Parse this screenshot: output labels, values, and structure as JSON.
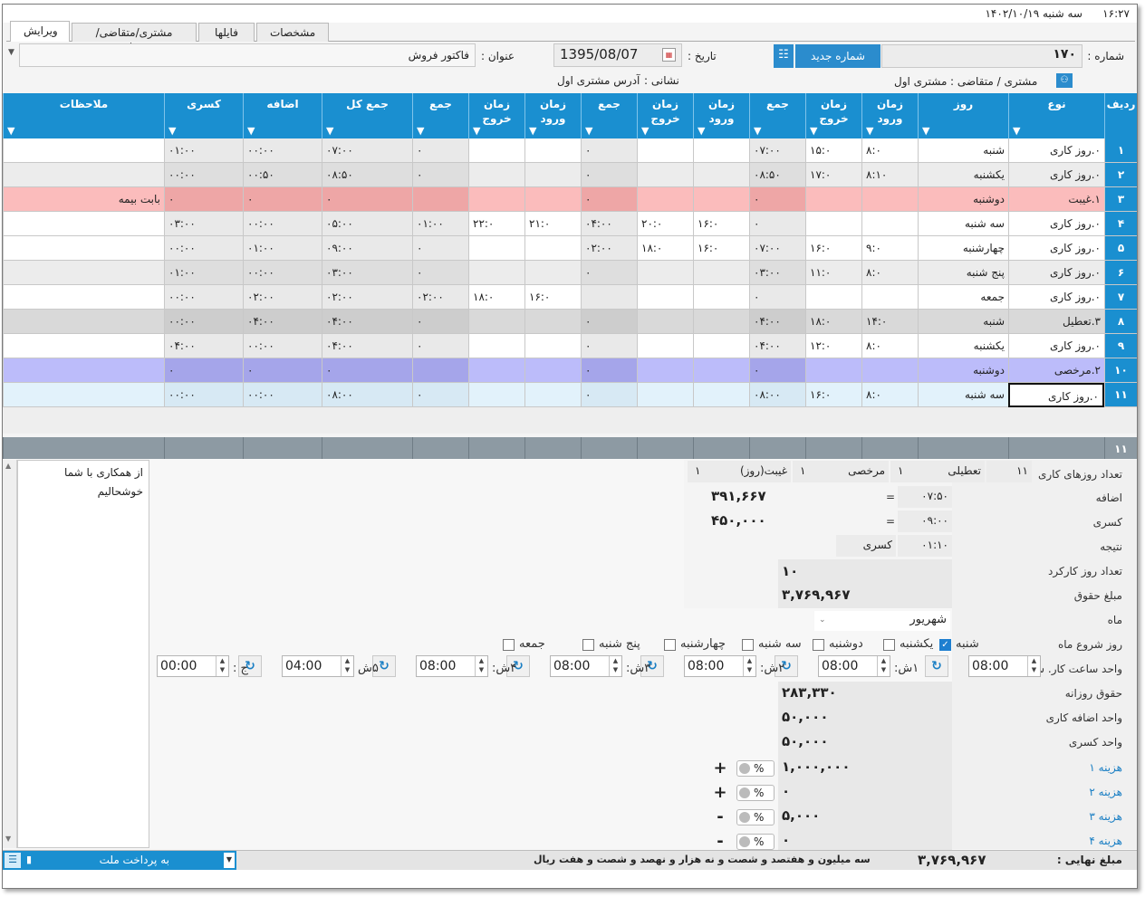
{
  "titlebar": {
    "time": "۱۶:۲۷",
    "date": "سه شنبه  ۱۴۰۲/۱۰/۱۹"
  },
  "tabs": [
    {
      "label": "ویرایش",
      "active": true
    },
    {
      "label": "مشتری/متقاضی/پروژه",
      "active": false
    },
    {
      "label": "فایلها",
      "active": false
    },
    {
      "label": "مشخصات",
      "active": false
    }
  ],
  "header": {
    "number_label": "شماره :",
    "number_value": "۱۷۰",
    "new_number_button": "شماره جدید",
    "date_label": "تاریخ :",
    "date_value": "1395/08/07",
    "title_label": "عنوان :",
    "title_value": "فاکتور فروش",
    "customer_label": "مشتری / متقاضی :",
    "customer_value": "مشتری اول",
    "address_label": "نشانی :",
    "address_value": "آدرس مشتری اول"
  },
  "grid": {
    "headers": {
      "row": "ردیف",
      "type": "نوع",
      "day": "روز",
      "in1": "زمان ورود",
      "out1": "زمان خروج",
      "sum1": "جمع",
      "in2": "زمان ورود",
      "out2": "زمان خروج",
      "sum2": "جمع",
      "in3": "زمان ورود",
      "out3": "زمان خروج",
      "sum3": "جمع",
      "total": "جمع کل",
      "extra": "اضافه",
      "deduct": "کسری",
      "notes": "ملاحظات"
    },
    "rows": [
      {
        "num": "۱",
        "type": "۰.روز کاری",
        "day": "شنبه",
        "in1": "۸:۰",
        "out1": "۱۵:۰",
        "sum1": "۰۷:۰۰",
        "in2": "",
        "out2": "",
        "sum2": "۰",
        "in3": "",
        "out3": "",
        "sum3": "۰",
        "total": "۰۷:۰۰",
        "extra": "۰۰:۰۰",
        "deduct": "۰۱:۰۰",
        "notes": "",
        "style": "white"
      },
      {
        "num": "۲",
        "type": "۰.روز کاری",
        "day": "یکشنبه",
        "in1": "۸:۱۰",
        "out1": "۱۷:۰",
        "sum1": "۰۸:۵۰",
        "in2": "",
        "out2": "",
        "sum2": "۰",
        "in3": "",
        "out3": "",
        "sum3": "۰",
        "total": "۰۸:۵۰",
        "extra": "۰۰:۵۰",
        "deduct": "۰۰:۰۰",
        "notes": "",
        "style": "gray"
      },
      {
        "num": "۳",
        "type": "۱.غیبت",
        "day": "دوشنبه",
        "in1": "",
        "out1": "",
        "sum1": "۰",
        "in2": "",
        "out2": "",
        "sum2": "۰",
        "in3": "",
        "out3": "",
        "sum3": "",
        "total": "۰",
        "extra": "۰",
        "deduct": "۰",
        "notes": "بابت بیمه",
        "style": "red"
      },
      {
        "num": "۴",
        "type": "۰.روز کاری",
        "day": "سه شنبه",
        "in1": "",
        "out1": "",
        "sum1": "۰",
        "in2": "۱۶:۰",
        "out2": "۲۰:۰",
        "sum2": "۰۴:۰۰",
        "in3": "۲۱:۰",
        "out3": "۲۲:۰",
        "sum3": "۰۱:۰۰",
        "total": "۰۵:۰۰",
        "extra": "۰۰:۰۰",
        "deduct": "۰۳:۰۰",
        "notes": "",
        "style": "white"
      },
      {
        "num": "۵",
        "type": "۰.روز کاری",
        "day": "چهارشنبه",
        "in1": "۹:۰",
        "out1": "۱۶:۰",
        "sum1": "۰۷:۰۰",
        "in2": "۱۶:۰",
        "out2": "۱۸:۰",
        "sum2": "۰۲:۰۰",
        "in3": "",
        "out3": "",
        "sum3": "۰",
        "total": "۰۹:۰۰",
        "extra": "۰۱:۰۰",
        "deduct": "۰۰:۰۰",
        "notes": "",
        "style": "white"
      },
      {
        "num": "۶",
        "type": "۰.روز کاری",
        "day": "پنج شنبه",
        "in1": "۸:۰",
        "out1": "۱۱:۰",
        "sum1": "۰۳:۰۰",
        "in2": "",
        "out2": "",
        "sum2": "۰",
        "in3": "",
        "out3": "",
        "sum3": "۰",
        "total": "۰۳:۰۰",
        "extra": "۰۰:۰۰",
        "deduct": "۰۱:۰۰",
        "notes": "",
        "style": "gray"
      },
      {
        "num": "۷",
        "type": "۰.روز کاری",
        "day": "جمعه",
        "in1": "",
        "out1": "",
        "sum1": "۰",
        "in2": "",
        "out2": "",
        "sum2": "",
        "in3": "۱۶:۰",
        "out3": "۱۸:۰",
        "sum3": "۰۲:۰۰",
        "total": "۰۲:۰۰",
        "extra": "۰۲:۰۰",
        "deduct": "۰۰:۰۰",
        "notes": "",
        "style": "white"
      },
      {
        "num": "۸",
        "type": "۳.تعطیل",
        "day": "شنبه",
        "in1": "۱۴:۰",
        "out1": "۱۸:۰",
        "sum1": "۰۴:۰۰",
        "in2": "",
        "out2": "",
        "sum2": "۰",
        "in3": "",
        "out3": "",
        "sum3": "۰",
        "total": "۰۴:۰۰",
        "extra": "۰۴:۰۰",
        "deduct": "۰۰:۰۰",
        "notes": "",
        "style": "darkgray"
      },
      {
        "num": "۹",
        "type": "۰.روز کاری",
        "day": "یکشنبه",
        "in1": "۸:۰",
        "out1": "۱۲:۰",
        "sum1": "۰۴:۰۰",
        "in2": "",
        "out2": "",
        "sum2": "۰",
        "in3": "",
        "out3": "",
        "sum3": "۰",
        "total": "۰۴:۰۰",
        "extra": "۰۰:۰۰",
        "deduct": "۰۴:۰۰",
        "notes": "",
        "style": "white"
      },
      {
        "num": "۱۰",
        "type": "۲.مرخصی",
        "day": "دوشنبه",
        "in1": "",
        "out1": "",
        "sum1": "۰",
        "in2": "",
        "out2": "",
        "sum2": "۰",
        "in3": "",
        "out3": "",
        "sum3": "",
        "total": "۰",
        "extra": "۰",
        "deduct": "۰",
        "notes": "",
        "style": "purple"
      },
      {
        "num": "۱۱",
        "type": "۰.روز کاری",
        "day": "سه شنبه",
        "in1": "۸:۰",
        "out1": "۱۶:۰",
        "sum1": "۰۸:۰۰",
        "in2": "",
        "out2": "",
        "sum2": "۰",
        "in3": "",
        "out3": "",
        "sum3": "۰",
        "total": "۰۸:۰۰",
        "extra": "۰۰:۰۰",
        "deduct": "۰۰:۰۰",
        "notes": "",
        "style": "selected"
      }
    ],
    "footer_count": "۱۱"
  },
  "summary": {
    "workdays_label": "تعداد روزهای کاری",
    "workdays_value": "۱۱",
    "holidays_label": "تعطیلی",
    "holidays_value": "۱",
    "leave_label": "مرخصی",
    "leave_value": "۱",
    "absence_label": "غیبت(روز)",
    "absence_value": "۱",
    "extra_label": "اضافه",
    "extra_time": "۰۷:۵۰",
    "extra_eq": "=",
    "extra_amount": "۳۹۱,۶۶۷",
    "deduct_label": "کسری",
    "deduct_time": "۰۹:۰۰",
    "deduct_eq": "=",
    "deduct_amount": "۴۵۰,۰۰۰",
    "result_label": "نتیجه",
    "result_time": "۰۱:۱۰",
    "result_kind": "کسری",
    "worked_days_label": "تعداد روز کارکرد",
    "worked_days_value": "۱۰",
    "salary_label": "مبلغ حقوق",
    "salary_value": "۳,۷۶۹,۹۶۷",
    "month_label": "ماه",
    "month_value": "شهریور",
    "start_day_label": "روز شروع ماه",
    "weekdays": [
      {
        "label": "شنبه",
        "checked": true
      },
      {
        "label": "یکشنبه",
        "checked": false
      },
      {
        "label": "دوشنبه",
        "checked": false
      },
      {
        "label": "سه شنبه",
        "checked": false
      },
      {
        "label": "چهارشنبه",
        "checked": false
      },
      {
        "label": "پنج شنبه",
        "checked": false
      },
      {
        "label": "جمعه",
        "checked": false
      }
    ],
    "hour_unit_label": "واحد ساعت کار.  ش:",
    "hour_units": [
      {
        "prefix": "",
        "value": "08:00"
      },
      {
        "prefix": "۱ش:",
        "value": "08:00"
      },
      {
        "prefix": "۲ش:",
        "value": "08:00"
      },
      {
        "prefix": "۳ش:",
        "value": "08:00"
      },
      {
        "prefix": "۴ش:",
        "value": "08:00"
      },
      {
        "prefix": "۵ش",
        "value": "04:00"
      },
      {
        "prefix": "ج :",
        "value": "00:00"
      }
    ],
    "daily_salary_label": "حقوق روزانه",
    "daily_salary_value": "۲۸۳,۳۳۰",
    "extra_unit_label": "واحد اضافه کاری",
    "extra_unit_value": "۵۰,۰۰۰",
    "deduct_unit_label": "واحد کسری",
    "deduct_unit_value": "۵۰,۰۰۰",
    "costs": [
      {
        "label": "هزینه ۱",
        "value": "۱,۰۰۰,۰۰۰",
        "sign": "+",
        "pct": "%"
      },
      {
        "label": "هزینه ۲",
        "value": "۰",
        "sign": "+",
        "pct": "%"
      },
      {
        "label": "هزینه ۳",
        "value": "۵,۰۰۰",
        "sign": "-",
        "pct": "%"
      },
      {
        "label": "هزینه ۴",
        "value": "۰",
        "sign": "-",
        "pct": "%"
      }
    ],
    "notes_text": "از همکاری با شما خوشحالیم"
  },
  "statusbar": {
    "final_label": "مبلغ نهایی :",
    "final_value": "۳,۷۶۹,۹۶۷",
    "final_words": "سه میلیون و هفتصد و شصت و نه هزار و نهصد و شصت و هفت ریال",
    "payment_value": "به پرداخت ملت"
  },
  "colors": {
    "header_blue": "#1a8fd0",
    "row_red": "#fbbcbc",
    "row_purple": "#bcbcfa",
    "row_darkgray": "#d8d8d8",
    "row_gray": "#ececec",
    "row_selected": "#e2f2fb"
  }
}
